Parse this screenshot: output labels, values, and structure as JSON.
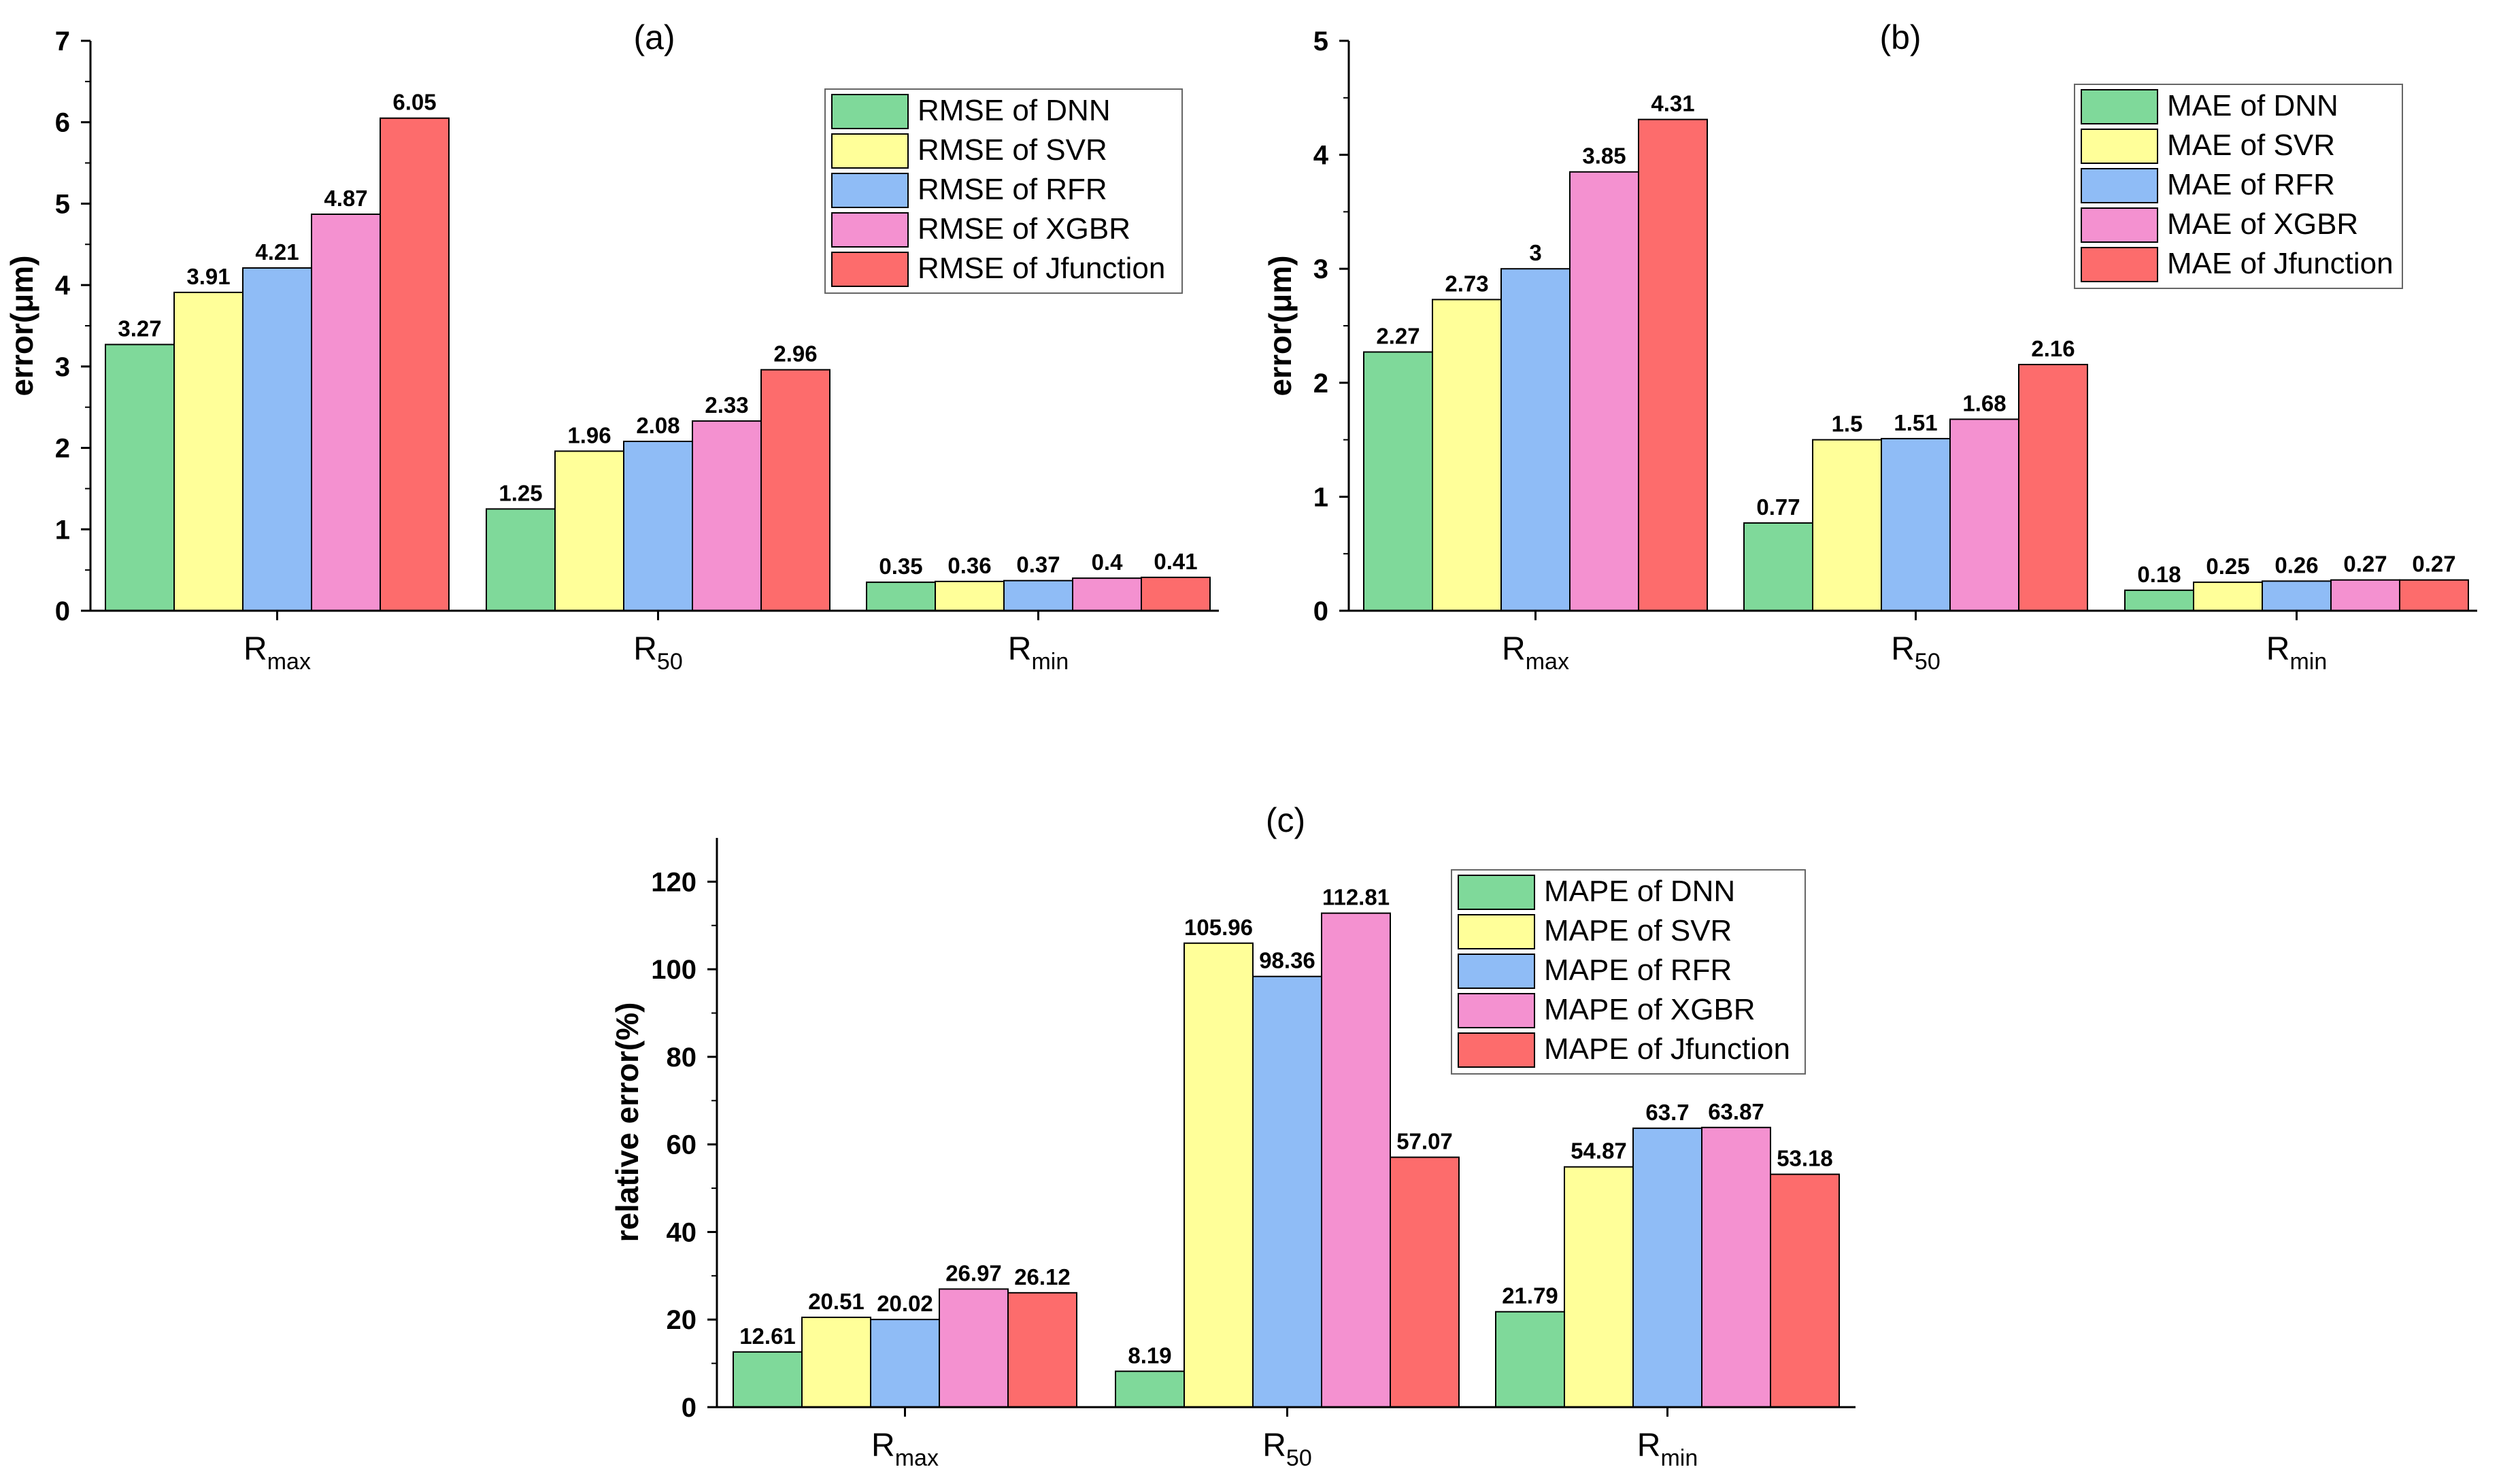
{
  "colors": {
    "DNN": "#7fd99a",
    "SVR": "#ffff99",
    "RFR": "#8fbcf6",
    "XGBR": "#f491d0",
    "Jfunction": "#fd6c6c",
    "axis": "#000000"
  },
  "chart_data": [
    {
      "type": "bar",
      "panel_label": "(a)",
      "ylabel": "error(μm)",
      "ylim": [
        0,
        7
      ],
      "yticks": [
        "0",
        "1",
        "2",
        "3",
        "4",
        "5",
        "6",
        "7"
      ],
      "categories": [
        {
          "main": "R",
          "sub": "max"
        },
        {
          "main": "R",
          "sub": "50"
        },
        {
          "main": "R",
          "sub": "min"
        }
      ],
      "legend_position": "top-right",
      "series": [
        {
          "name": "RMSE of DNN",
          "key": "DNN",
          "values": [
            3.27,
            1.25,
            0.35
          ],
          "labels": [
            "3.27",
            "1.25",
            "0.35"
          ]
        },
        {
          "name": "RMSE of SVR",
          "key": "SVR",
          "values": [
            3.91,
            1.96,
            0.36
          ],
          "labels": [
            "3.91",
            "1.96",
            "0.36"
          ]
        },
        {
          "name": "RMSE of RFR",
          "key": "RFR",
          "values": [
            4.21,
            2.08,
            0.37
          ],
          "labels": [
            "4.21",
            "2.08",
            "0.37"
          ]
        },
        {
          "name": "RMSE of XGBR",
          "key": "XGBR",
          "values": [
            4.87,
            2.33,
            0.4
          ],
          "labels": [
            "4.87",
            "2.33",
            "0.4"
          ]
        },
        {
          "name": "RMSE of Jfunction",
          "key": "Jfunction",
          "values": [
            6.05,
            2.96,
            0.41
          ],
          "labels": [
            "6.05",
            "2.96",
            "0.41"
          ]
        }
      ]
    },
    {
      "type": "bar",
      "panel_label": "(b)",
      "ylabel": "error(μm)",
      "ylim": [
        0,
        5
      ],
      "yticks": [
        "0",
        "1",
        "2",
        "3",
        "4",
        "5"
      ],
      "categories": [
        {
          "main": "R",
          "sub": "max"
        },
        {
          "main": "R",
          "sub": "50"
        },
        {
          "main": "R",
          "sub": "min"
        }
      ],
      "legend_position": "top-right",
      "series": [
        {
          "name": "MAE of DNN",
          "key": "DNN",
          "values": [
            2.27,
            0.77,
            0.18
          ],
          "labels": [
            "2.27",
            "0.77",
            "0.18"
          ]
        },
        {
          "name": "MAE of SVR",
          "key": "SVR",
          "values": [
            2.73,
            1.5,
            0.25
          ],
          "labels": [
            "2.73",
            "1.5",
            "0.25"
          ]
        },
        {
          "name": "MAE of RFR",
          "key": "RFR",
          "values": [
            3.0,
            1.51,
            0.26
          ],
          "labels": [
            "3",
            "1.51",
            "0.26"
          ]
        },
        {
          "name": "MAE of XGBR",
          "key": "XGBR",
          "values": [
            3.85,
            1.68,
            0.27
          ],
          "labels": [
            "3.85",
            "1.68",
            "0.27"
          ]
        },
        {
          "name": "MAE of Jfunction",
          "key": "Jfunction",
          "values": [
            4.31,
            2.16,
            0.27
          ],
          "labels": [
            "4.31",
            "2.16",
            "0.27"
          ]
        }
      ]
    },
    {
      "type": "bar",
      "panel_label": "(c)",
      "ylabel": "relative error(%)",
      "ylim": [
        0,
        130
      ],
      "yticks": [
        "0",
        "20",
        "40",
        "60",
        "80",
        "100",
        "120"
      ],
      "categories": [
        {
          "main": "R",
          "sub": "max"
        },
        {
          "main": "R",
          "sub": "50"
        },
        {
          "main": "R",
          "sub": "min"
        }
      ],
      "legend_position": "top-left",
      "series": [
        {
          "name": "MAPE of DNN",
          "key": "DNN",
          "values": [
            12.61,
            8.19,
            21.79
          ],
          "labels": [
            "12.61",
            "8.19",
            "21.79"
          ]
        },
        {
          "name": "MAPE of SVR",
          "key": "SVR",
          "values": [
            20.51,
            105.96,
            54.87
          ],
          "labels": [
            "20.51",
            "105.96",
            "54.87"
          ]
        },
        {
          "name": "MAPE of RFR",
          "key": "RFR",
          "values": [
            20.02,
            98.36,
            63.7
          ],
          "labels": [
            "20.02",
            "98.36",
            "63.7"
          ]
        },
        {
          "name": "MAPE of XGBR",
          "key": "XGBR",
          "values": [
            26.97,
            112.81,
            63.87
          ],
          "labels": [
            "26.97",
            "112.81",
            "63.87"
          ]
        },
        {
          "name": "MAPE of Jfunction",
          "key": "Jfunction",
          "values": [
            26.12,
            57.07,
            53.18
          ],
          "labels": [
            "26.12",
            "57.07",
            "53.18"
          ]
        }
      ]
    }
  ]
}
